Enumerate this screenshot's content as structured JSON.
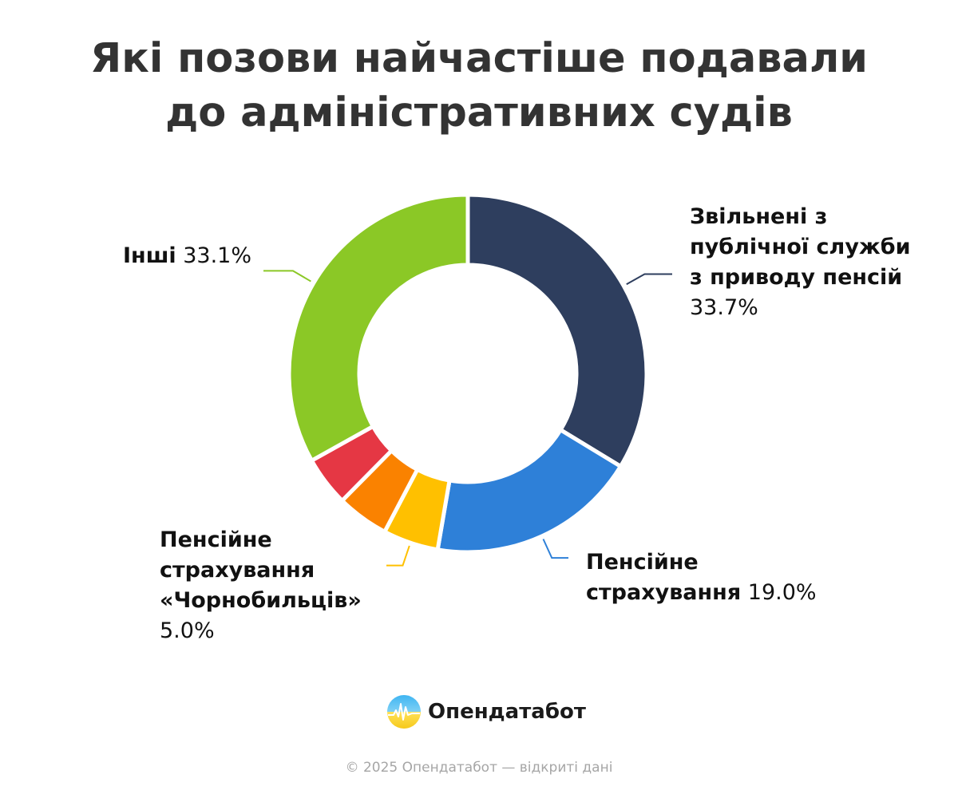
{
  "chart_data": {
    "type": "pie",
    "title_lines": [
      "Які позови найчастіше подавали",
      "до адміністративних судів"
    ],
    "slices": [
      {
        "labelled": true,
        "name_lines": [
          "Звільнені з",
          "публічної служби",
          "з приводу пенсій"
        ],
        "value_text": "33.7%",
        "value": 33.7,
        "color": "#2e3e5e"
      },
      {
        "labelled": true,
        "name_lines": [
          "Пенсійне",
          "страхування"
        ],
        "value_text": "19.0%",
        "value": 19.0,
        "color": "#2e80d8"
      },
      {
        "labelled": true,
        "name_lines": [
          "Пенсійне",
          "страхування",
          "«Чорнобильців»"
        ],
        "value_text": "5.0%",
        "value": 5.0,
        "color": "#ffc000"
      },
      {
        "labelled": false,
        "value": 4.7,
        "color": "#fa8200"
      },
      {
        "labelled": false,
        "value": 4.5,
        "color": "#e53744"
      },
      {
        "labelled": true,
        "name_lines": [
          "Інші"
        ],
        "value_text": "33.1%",
        "value": 33.1,
        "color": "#8bc826"
      }
    ]
  },
  "brand": {
    "name": "Опендатабот"
  },
  "footer": {
    "text": "© 2025 Опендатабот — відкриті дані"
  }
}
